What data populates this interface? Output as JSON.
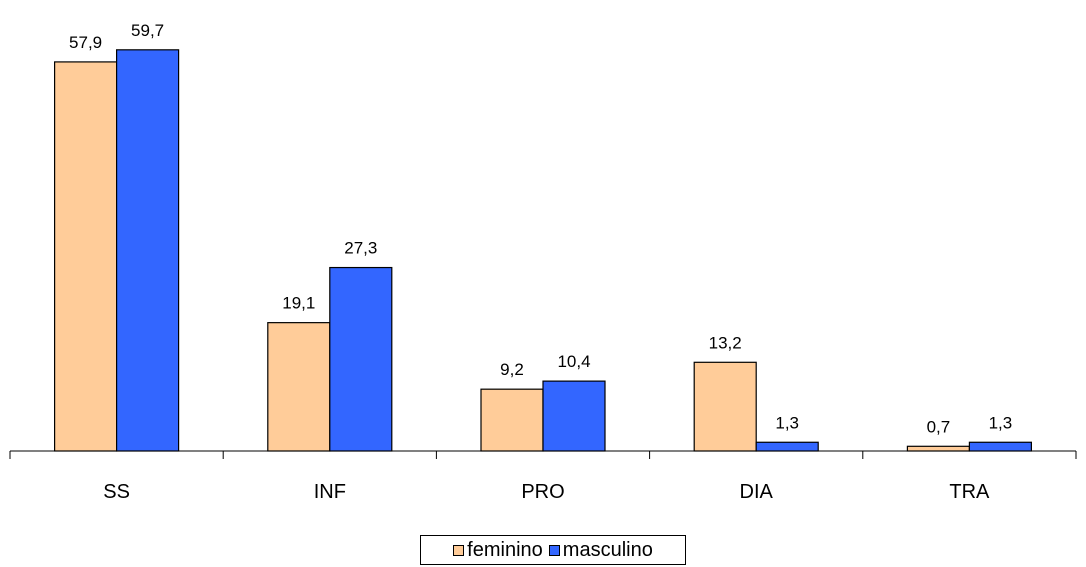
{
  "chart_data": {
    "type": "bar",
    "categories": [
      "SS",
      "INF",
      "PRO",
      "DIA",
      "TRA"
    ],
    "series": [
      {
        "name": "feminino",
        "color": "#FFCC99",
        "values": [
          57.9,
          19.1,
          9.2,
          13.2,
          0.7
        ],
        "labels": [
          "57,9",
          "19,1",
          "9,2",
          "13,2",
          "0,7"
        ]
      },
      {
        "name": "masculino",
        "color": "#3366FF",
        "values": [
          59.7,
          27.3,
          10.4,
          1.3,
          1.3
        ],
        "labels": [
          "59,7",
          "27,3",
          "10,4",
          "1,3",
          "1,3"
        ]
      }
    ],
    "title": "",
    "xlabel": "",
    "ylabel": "",
    "ylim": [
      0,
      62
    ],
    "grid": false,
    "legend_position": "bottom"
  }
}
